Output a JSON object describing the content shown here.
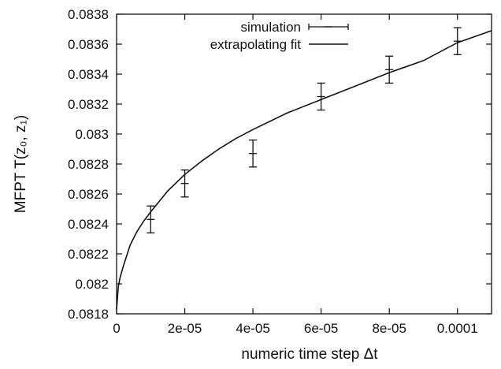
{
  "chart_data": {
    "type": "scatter",
    "title": "",
    "xlabel": "numeric time step Δt",
    "ylabel": "MFPT T(z₀, z₁)",
    "xlim": [
      0,
      0.00011
    ],
    "ylim": [
      0.0818,
      0.0838
    ],
    "x_ticks": [
      0,
      2e-05,
      4e-05,
      6e-05,
      8e-05,
      0.0001
    ],
    "x_tick_labels": [
      "0",
      "2e-05",
      "4e-05",
      "6e-05",
      "8e-05",
      "0.0001"
    ],
    "y_ticks": [
      0.0818,
      0.082,
      0.0822,
      0.0824,
      0.0826,
      0.0828,
      0.083,
      0.0832,
      0.0834,
      0.0836,
      0.0838
    ],
    "y_tick_labels": [
      "0.0818",
      "0.082",
      "0.0822",
      "0.0824",
      "0.0826",
      "0.0828",
      "0.083",
      "0.0832",
      "0.0834",
      "0.0836",
      "0.0838"
    ],
    "legend_position": "top-center",
    "series": [
      {
        "name": "simulation",
        "kind": "errorbar",
        "points": [
          {
            "x": 1e-05,
            "y": 0.08243,
            "yerr": 9e-05
          },
          {
            "x": 2e-05,
            "y": 0.08267,
            "yerr": 9e-05
          },
          {
            "x": 4e-05,
            "y": 0.08287,
            "yerr": 9e-05
          },
          {
            "x": 6e-05,
            "y": 0.08325,
            "yerr": 9e-05
          },
          {
            "x": 8e-05,
            "y": 0.08343,
            "yerr": 9e-05
          },
          {
            "x": 0.0001,
            "y": 0.08362,
            "yerr": 9e-05
          }
        ]
      },
      {
        "name": "extrapolating fit",
        "kind": "line",
        "points": [
          {
            "x": 0,
            "y": 0.08183
          },
          {
            "x": 5e-07,
            "y": 0.08198
          },
          {
            "x": 1e-06,
            "y": 0.08204
          },
          {
            "x": 2e-06,
            "y": 0.08212
          },
          {
            "x": 4e-06,
            "y": 0.08226
          },
          {
            "x": 6e-06,
            "y": 0.08235
          },
          {
            "x": 8e-06,
            "y": 0.08242
          },
          {
            "x": 1e-05,
            "y": 0.08248
          },
          {
            "x": 1.5e-05,
            "y": 0.08262
          },
          {
            "x": 2e-05,
            "y": 0.08273
          },
          {
            "x": 2.5e-05,
            "y": 0.08282
          },
          {
            "x": 3e-05,
            "y": 0.0829
          },
          {
            "x": 3.5e-05,
            "y": 0.08297
          },
          {
            "x": 4e-05,
            "y": 0.08303
          },
          {
            "x": 5e-05,
            "y": 0.08314
          },
          {
            "x": 6e-05,
            "y": 0.08323
          },
          {
            "x": 7e-05,
            "y": 0.08332
          },
          {
            "x": 8e-05,
            "y": 0.08341
          },
          {
            "x": 9e-05,
            "y": 0.08349
          },
          {
            "x": 0.0001,
            "y": 0.08361
          },
          {
            "x": 0.00011,
            "y": 0.08369
          }
        ]
      }
    ]
  }
}
